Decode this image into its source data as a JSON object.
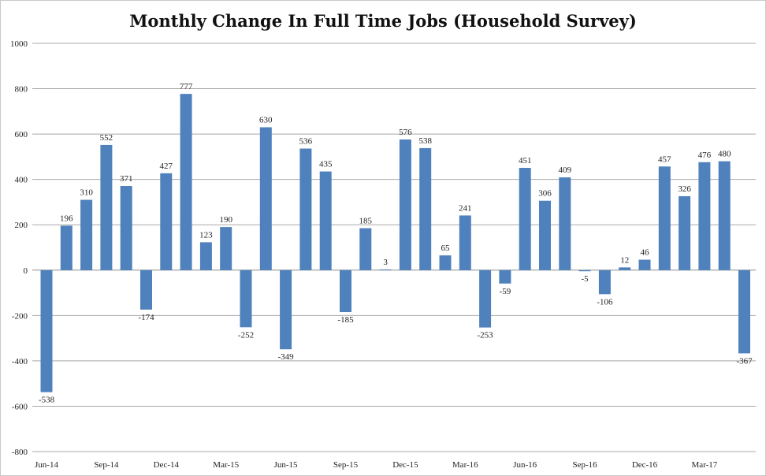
{
  "chart_data": {
    "type": "bar",
    "title": "Monthly Change In Full Time Jobs (Household Survey)",
    "xlabel": "",
    "ylabel": "",
    "ylim": [
      -800,
      1000
    ],
    "yticks": [
      -800,
      -600,
      -400,
      -200,
      0,
      200,
      400,
      600,
      800,
      1000
    ],
    "grid": true,
    "legend": "none",
    "bar_color": "#4f81bd",
    "categories": [
      "Jun-14",
      "Jul-14",
      "Aug-14",
      "Sep-14",
      "Oct-14",
      "Nov-14",
      "Dec-14",
      "Jan-15",
      "Feb-15",
      "Mar-15",
      "Apr-15",
      "May-15",
      "Jun-15",
      "Jul-15",
      "Aug-15",
      "Sep-15",
      "Oct-15",
      "Nov-15",
      "Dec-15",
      "Jan-16",
      "Feb-16",
      "Mar-16",
      "Apr-16",
      "May-16",
      "Jun-16",
      "Jul-16",
      "Aug-16",
      "Sep-16",
      "Oct-16",
      "Nov-16",
      "Dec-16",
      "Jan-17",
      "Feb-17",
      "Mar-17",
      "Apr-17",
      "May-17"
    ],
    "x_tick_labels": [
      {
        "index": 0,
        "label": "Jun-14"
      },
      {
        "index": 3,
        "label": "Sep-14"
      },
      {
        "index": 6,
        "label": "Dec-14"
      },
      {
        "index": 9,
        "label": "Mar-15"
      },
      {
        "index": 12,
        "label": "Jun-15"
      },
      {
        "index": 15,
        "label": "Sep-15"
      },
      {
        "index": 18,
        "label": "Dec-15"
      },
      {
        "index": 21,
        "label": "Mar-16"
      },
      {
        "index": 24,
        "label": "Jun-16"
      },
      {
        "index": 27,
        "label": "Sep-16"
      },
      {
        "index": 30,
        "label": "Dec-16"
      },
      {
        "index": 33,
        "label": "Mar-17"
      }
    ],
    "values": [
      -538,
      196,
      310,
      552,
      371,
      -174,
      427,
      777,
      123,
      190,
      -252,
      630,
      -349,
      536,
      435,
      -185,
      185,
      3,
      576,
      538,
      65,
      241,
      -253,
      -59,
      451,
      306,
      409,
      -5,
      -106,
      12,
      46,
      457,
      326,
      476,
      480,
      -367
    ]
  }
}
